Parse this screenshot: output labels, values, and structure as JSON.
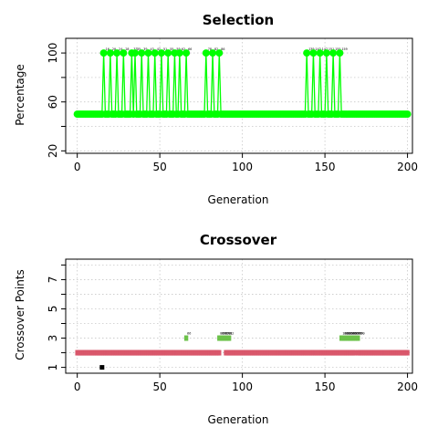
{
  "chart_data": [
    {
      "type": "line",
      "title": "Selection",
      "xlabel": "Generation",
      "ylabel": "Percentage",
      "xlim": [
        -7,
        203
      ],
      "ylim": [
        18,
        112
      ],
      "xticks": [
        0,
        50,
        100,
        150,
        200
      ],
      "yticks": [
        20,
        60,
        100
      ],
      "yticks_minor": [
        40,
        80
      ],
      "grid": true,
      "color": "#00ff00",
      "baseline": 50,
      "baseline_range": [
        0,
        200
      ],
      "spike_value": 100,
      "spikes": [
        16,
        20,
        24,
        28,
        33,
        35,
        39,
        43,
        47,
        51,
        55,
        59,
        62,
        66,
        78,
        82,
        86,
        139,
        143,
        147,
        151,
        155,
        159
      ],
      "point_labels": true
    },
    {
      "type": "scatter",
      "title": "Crossover",
      "xlabel": "Generation",
      "ylabel": "Crossover Points",
      "xlim": [
        -7,
        203
      ],
      "ylim": [
        0.6,
        8.4
      ],
      "xticks": [
        0,
        50,
        100,
        150,
        200
      ],
      "yticks": [
        1,
        3,
        5,
        7
      ],
      "yticks_minor": [
        2,
        4,
        6,
        8
      ],
      "grid": true,
      "series": [
        {
          "values": "2 for nearly every generation",
          "y": 2,
          "x_segments": [
            [
              0,
              86
            ],
            [
              90,
              168
            ],
            [
              170,
              200
            ]
          ],
          "color": "#d9576b"
        },
        {
          "y": 3,
          "x": [
            66,
            86,
            87,
            88,
            89,
            90,
            91,
            92,
            160,
            161,
            162,
            163,
            164,
            165,
            166,
            167,
            168,
            169,
            170
          ],
          "color": "#6cc24a"
        },
        {
          "y": 1,
          "x": [
            15
          ],
          "color": "#000000"
        }
      ],
      "point_labels": true
    }
  ]
}
